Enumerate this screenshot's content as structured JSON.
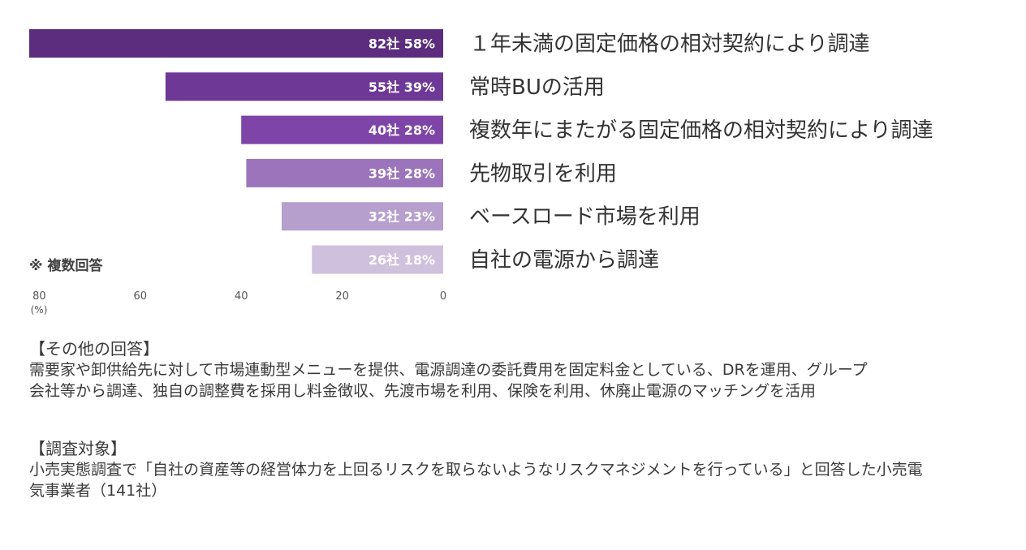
{
  "chart_data": {
    "type": "bar",
    "orientation": "horizontal",
    "x_direction": "reversed",
    "categories": [
      "１年未満の固定価格の相対契約により調達",
      "常時BUの活用",
      "複数年にまたがる固定価格の相対契約により調達",
      "先物取引を利用",
      "ベースロード市場を利用",
      "自社の電源から調達"
    ],
    "values": [
      82,
      55,
      40,
      39,
      32,
      26
    ],
    "data_labels": [
      "82社 58%",
      "55社 39%",
      "40社 28%",
      "39社 28%",
      "32社 23%",
      "26社 18%"
    ],
    "xlim": [
      0,
      80
    ],
    "x_ticks": [
      "80",
      "60",
      "40",
      "20",
      "0"
    ],
    "x_unit": "(%)",
    "grid": false,
    "colors": [
      "#5c2d7e",
      "#6e3897",
      "#7f44a8",
      "#9b74bb",
      "#b69fcd",
      "#cfc0de"
    ]
  },
  "note": "※ 複数回答",
  "other_answers": {
    "heading": "【その他の回答】",
    "line1": "需要家や卸供給先に対して市場連動型メニューを提供、電源調達の委託費用を固定料金としている、DRを運用、グループ",
    "line2": "会社等から調達、独自の調整費を採用し料金徴収、先渡市場を利用、保険を利用、休廃止電源のマッチングを活用"
  },
  "survey_target": {
    "heading": "【調査対象】",
    "line1": "小売実態調査で「自社の資産等の経営体力を上回るリスクを取らないようなリスクマネジメントを行っている」と回答した小売電",
    "line2": "気事業者（141社）"
  }
}
